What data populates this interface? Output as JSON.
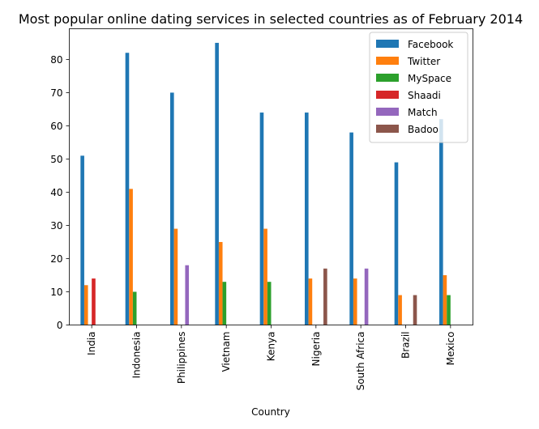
{
  "chart_data": {
    "type": "bar",
    "title": "Most popular online dating services in selected countries as of February 2014",
    "xlabel": "Country",
    "ylabel": "",
    "ylim": [
      0,
      89.25
    ],
    "yticks": [
      0,
      10,
      20,
      30,
      40,
      50,
      60,
      70,
      80
    ],
    "grid": false,
    "legend_position": "top-right",
    "categories": [
      "India",
      "Indonesia",
      "Philippines",
      "Vietnam",
      "Kenya",
      "Nigeria",
      "South Africa",
      "Brazil",
      "Mexico"
    ],
    "series": [
      {
        "name": "Facebook",
        "color": "#1f77b4",
        "values": [
          51,
          82,
          70,
          85,
          64,
          64,
          58,
          49,
          62
        ]
      },
      {
        "name": "Twitter",
        "color": "#ff7f0e",
        "values": [
          12,
          41,
          29,
          25,
          29,
          14,
          14,
          9,
          15
        ]
      },
      {
        "name": "MySpace",
        "color": "#2ca02c",
        "values": [
          0,
          10,
          0,
          13,
          13,
          0,
          0,
          0,
          9
        ]
      },
      {
        "name": "Shaadi",
        "color": "#d62728",
        "values": [
          14,
          0,
          0,
          0,
          0,
          0,
          0,
          0,
          0
        ]
      },
      {
        "name": "Match",
        "color": "#9467bd",
        "values": [
          0,
          0,
          18,
          0,
          0,
          0,
          17,
          0,
          0
        ]
      },
      {
        "name": "Badoo",
        "color": "#8c564b",
        "values": [
          0,
          0,
          0,
          0,
          0,
          17,
          0,
          9,
          0
        ]
      }
    ]
  }
}
